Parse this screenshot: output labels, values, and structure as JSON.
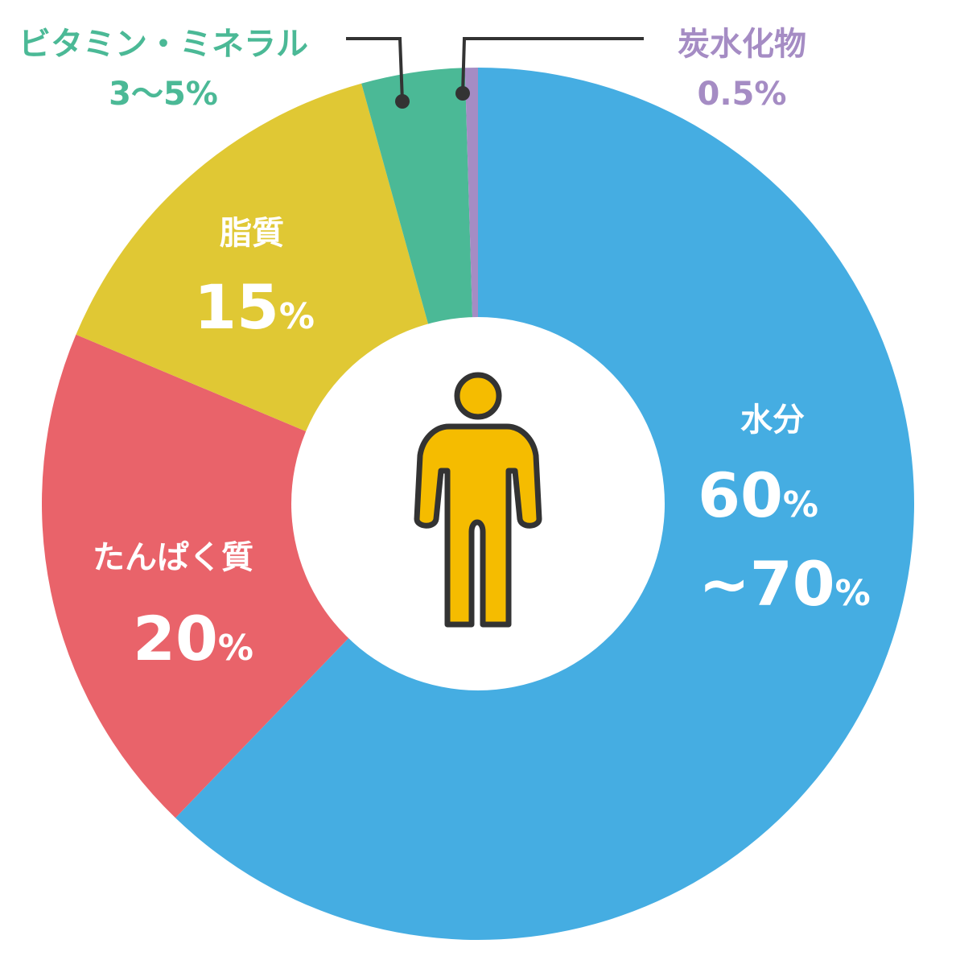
{
  "chart_data": {
    "type": "pie",
    "slices": [
      {
        "label": "水分",
        "value": 65,
        "value_text": "60%~70%",
        "color": "#45ade2"
      },
      {
        "label": "たんぱく質",
        "value": 20,
        "value_text": "20%",
        "color": "#e9636a"
      },
      {
        "label": "脂質",
        "value": 15,
        "value_text": "15%",
        "color": "#e0c834"
      },
      {
        "label": "ビタミン・ミネラル",
        "value": 4,
        "value_text": "3〜5%",
        "color": "#4bb996"
      },
      {
        "label": "炭水化物",
        "value": 0.5,
        "value_text": "0.5%",
        "color": "#a58cc4"
      }
    ],
    "center_icon": "person-icon",
    "legend": "labels on slices"
  },
  "labels": {
    "water": {
      "name": "水分",
      "pct_line1": "60",
      "pct_line2": "~70",
      "sign": "%"
    },
    "protein": {
      "name": "たんぱく質",
      "pct": "20",
      "sign": "%"
    },
    "fat": {
      "name": "脂質",
      "pct": "15",
      "sign": "%"
    },
    "vitamin": {
      "name": "ビタミン・ミネラル",
      "pct": "3〜5%"
    },
    "carb": {
      "name": "炭水化物",
      "pct": "0.5%"
    }
  },
  "icons": {
    "center": "person-icon"
  },
  "colors": {
    "water": "#45ade2",
    "protein": "#e9636a",
    "fat": "#e0c834",
    "vitamin": "#4bb996",
    "carb": "#a58cc4",
    "person_fill": "#f5bc00",
    "outline": "#333333",
    "label_white": "#ffffff"
  }
}
